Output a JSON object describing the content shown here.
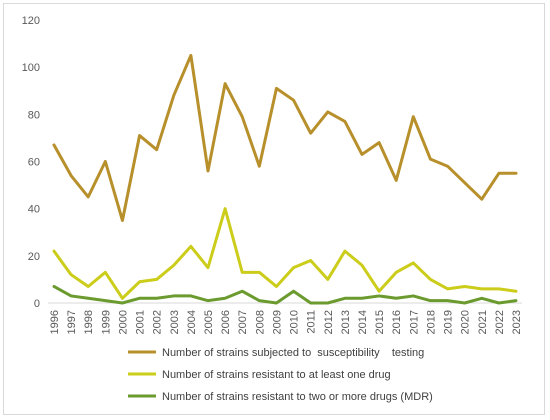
{
  "chart_data": {
    "type": "line",
    "title": "",
    "xlabel": "",
    "ylabel": "",
    "ylim": [
      0,
      120
    ],
    "yticks": [
      0,
      20,
      40,
      60,
      80,
      100,
      120
    ],
    "grid": false,
    "legend_position": "bottom",
    "x": [
      "1996",
      "1997",
      "1998",
      "1999",
      "2000",
      "2001",
      "2002",
      "2003",
      "2004",
      "2005",
      "2006",
      "2007",
      "2008",
      "2009",
      "2010",
      "2011",
      "2012",
      "2013",
      "2014",
      "2015",
      "2016",
      "2017",
      "2018",
      "2019",
      "2020",
      "2021",
      "2022",
      "2023"
    ],
    "series": [
      {
        "name": "Number of strains subjected to  susceptibility    testing",
        "color": "#b8902b",
        "values": [
          67,
          54,
          45,
          60,
          35,
          71,
          65,
          88,
          105,
          56,
          93,
          79,
          58,
          91,
          86,
          72,
          81,
          77,
          63,
          68,
          52,
          79,
          61,
          58,
          51,
          44,
          55,
          55
        ]
      },
      {
        "name": "Number of strains resistant to at least one drug",
        "color": "#cccc1a",
        "values": [
          22,
          12,
          7,
          13,
          2,
          9,
          10,
          16,
          24,
          15,
          40,
          13,
          13,
          7,
          15,
          18,
          10,
          22,
          16,
          5,
          13,
          17,
          10,
          6,
          7,
          6,
          6,
          5
        ]
      },
      {
        "name": "Number of strains resistant to two or more drugs (MDR)",
        "color": "#6b9a2f",
        "values": [
          7,
          3,
          2,
          1,
          0,
          2,
          2,
          3,
          3,
          1,
          2,
          5,
          1,
          0,
          5,
          0,
          0,
          2,
          2,
          3,
          2,
          3,
          1,
          1,
          0,
          2,
          0,
          1
        ]
      }
    ]
  }
}
